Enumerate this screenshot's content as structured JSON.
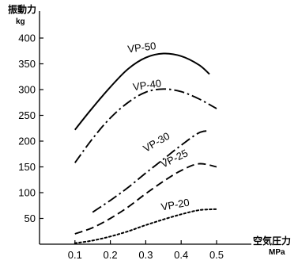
{
  "chart_data": {
    "type": "line",
    "xlabel": "空気圧力",
    "xunit": "MPa",
    "ylabel": "振動力",
    "yunit": "kg",
    "xlim": [
      0.0,
      0.55
    ],
    "ylim": [
      0,
      450
    ],
    "xticks": [
      0.1,
      0.2,
      0.3,
      0.4,
      0.5
    ],
    "xtick_labels": [
      "0.1",
      "0.2",
      "0.3",
      "0.4",
      "0.5"
    ],
    "yticks": [
      50,
      100,
      150,
      200,
      250,
      300,
      350,
      400
    ],
    "ytick_labels": [
      "50",
      "100",
      "150",
      "200",
      "250",
      "300",
      "350",
      "400"
    ],
    "grid": false,
    "series": [
      {
        "name": "VP-50",
        "style": "solid",
        "x": [
          0.1,
          0.15,
          0.2,
          0.25,
          0.3,
          0.35,
          0.4,
          0.45,
          0.48
        ],
        "y": [
          222,
          265,
          305,
          340,
          362,
          370,
          365,
          348,
          330
        ]
      },
      {
        "name": "VP-40",
        "style": "dashdot",
        "x": [
          0.1,
          0.15,
          0.2,
          0.25,
          0.3,
          0.35,
          0.4,
          0.45,
          0.5
        ],
        "y": [
          158,
          205,
          245,
          275,
          295,
          301,
          296,
          282,
          263
        ]
      },
      {
        "name": "VP-30",
        "style": "dashdot",
        "x": [
          0.15,
          0.2,
          0.25,
          0.3,
          0.35,
          0.4,
          0.45,
          0.48
        ],
        "y": [
          62,
          85,
          110,
          138,
          165,
          192,
          216,
          220
        ]
      },
      {
        "name": "VP-25",
        "style": "dashed",
        "x": [
          0.1,
          0.15,
          0.2,
          0.25,
          0.3,
          0.35,
          0.4,
          0.45,
          0.5
        ],
        "y": [
          20,
          32,
          50,
          72,
          98,
          122,
          143,
          156,
          150
        ]
      },
      {
        "name": "VP-20",
        "style": "dotted",
        "x": [
          0.1,
          0.15,
          0.2,
          0.25,
          0.3,
          0.35,
          0.4,
          0.45,
          0.5
        ],
        "y": [
          2,
          7,
          15,
          25,
          37,
          48,
          58,
          66,
          68
        ]
      }
    ]
  }
}
